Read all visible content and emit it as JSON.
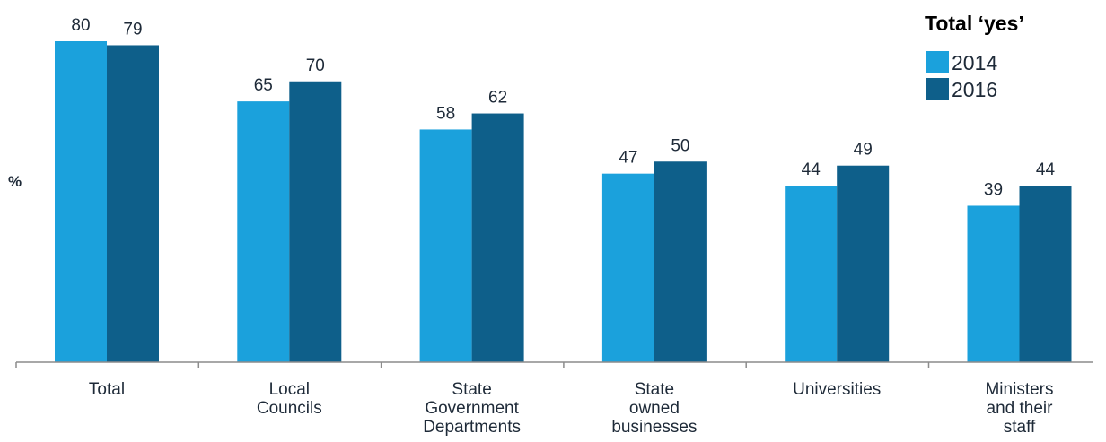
{
  "chart_data": {
    "type": "bar",
    "ylabel": "%",
    "categories": [
      [
        "Total"
      ],
      [
        "Local",
        "Councils"
      ],
      [
        "State",
        "Government",
        "Departments"
      ],
      [
        "State",
        "owned",
        "businesses"
      ],
      [
        "Universities"
      ],
      [
        "Ministers",
        "and their",
        "staff"
      ]
    ],
    "series": [
      {
        "name": "2014",
        "color": "#1ba1dc",
        "values": [
          80,
          65,
          58,
          47,
          44,
          39
        ]
      },
      {
        "name": "2016",
        "color": "#0e5f8a",
        "values": [
          79,
          70,
          62,
          50,
          49,
          44
        ]
      }
    ],
    "ylim": [
      0,
      80
    ],
    "grid": false,
    "legend": {
      "title": "Total ‘yes’",
      "position": "top-right"
    }
  }
}
